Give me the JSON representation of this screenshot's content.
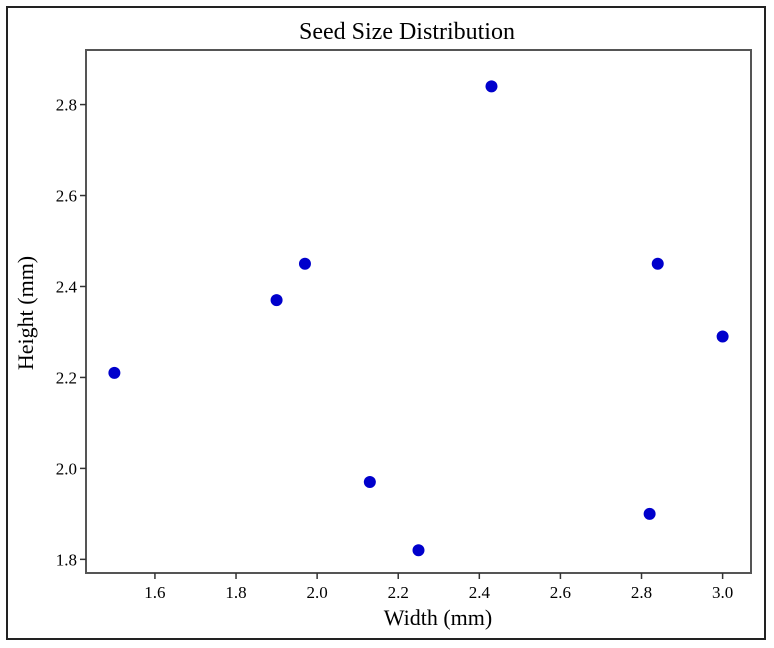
{
  "chart_data": {
    "type": "scatter",
    "title": "Seed Size Distribution",
    "xlabel": "Width (mm)",
    "ylabel": "Height (mm)",
    "xlim": [
      1.43,
      3.07
    ],
    "ylim": [
      1.77,
      2.92
    ],
    "x_ticks": [
      "1.6",
      "1.8",
      "2.0",
      "2.2",
      "2.4",
      "2.6",
      "2.8",
      "3.0"
    ],
    "x_tick_values": [
      1.6,
      1.8,
      2.0,
      2.2,
      2.4,
      2.6,
      2.8,
      3.0
    ],
    "y_ticks": [
      "1.8",
      "2.0",
      "2.2",
      "2.4",
      "2.6",
      "2.8"
    ],
    "y_tick_values": [
      1.8,
      2.0,
      2.2,
      2.4,
      2.6,
      2.8
    ],
    "grid": false,
    "marker_color": "#0000cc",
    "series": [
      {
        "points": [
          {
            "x": 1.5,
            "y": 2.21
          },
          {
            "x": 1.9,
            "y": 2.37
          },
          {
            "x": 1.97,
            "y": 2.45
          },
          {
            "x": 2.13,
            "y": 1.97
          },
          {
            "x": 2.25,
            "y": 1.82
          },
          {
            "x": 2.43,
            "y": 2.84
          },
          {
            "x": 2.82,
            "y": 1.9
          },
          {
            "x": 2.84,
            "y": 2.45
          },
          {
            "x": 3.0,
            "y": 2.29
          }
        ]
      }
    ]
  }
}
